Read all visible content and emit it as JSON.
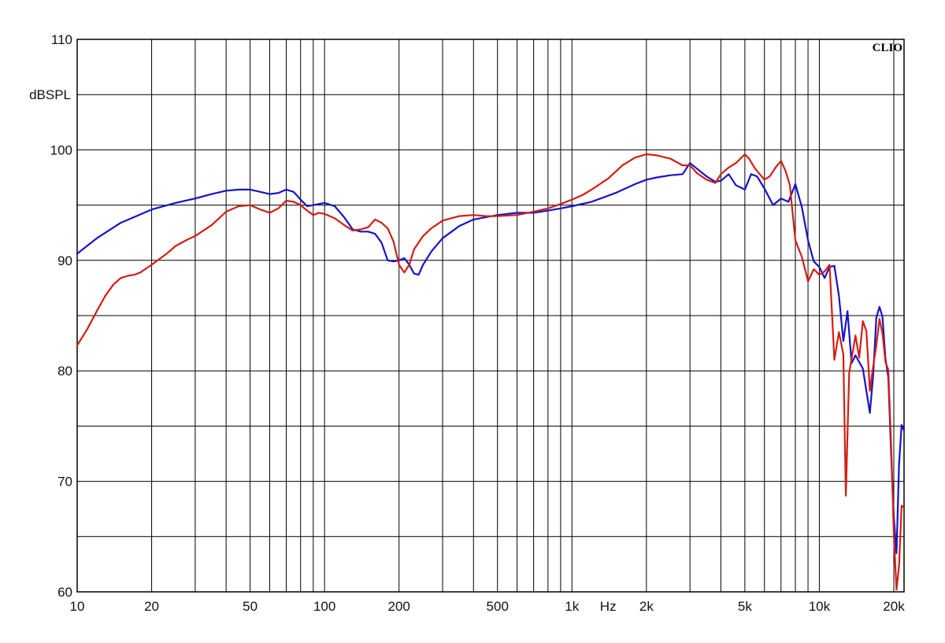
{
  "chart_data": {
    "type": "line",
    "title": "",
    "xlabel": "Hz",
    "ylabel": "dBSPL",
    "brand": "CLIO",
    "x_scale": "log",
    "xlim": [
      10,
      22000
    ],
    "ylim": [
      60,
      110
    ],
    "grid": true,
    "x_ticks": [
      {
        "value": 10,
        "label": "10"
      },
      {
        "value": 20,
        "label": "20"
      },
      {
        "value": 50,
        "label": "50"
      },
      {
        "value": 100,
        "label": "100"
      },
      {
        "value": 200,
        "label": "200"
      },
      {
        "value": 500,
        "label": "500"
      },
      {
        "value": 1000,
        "label": "1k"
      },
      {
        "value": 2000,
        "label": "2k"
      },
      {
        "value": 5000,
        "label": "5k"
      },
      {
        "value": 10000,
        "label": "10k"
      },
      {
        "value": 20000,
        "label": "20k"
      }
    ],
    "y_ticks": [
      {
        "value": 60,
        "label": "60"
      },
      {
        "value": 70,
        "label": "70"
      },
      {
        "value": 80,
        "label": "80"
      },
      {
        "value": 90,
        "label": "90"
      },
      {
        "value": 100,
        "label": "100"
      },
      {
        "value": 110,
        "label": "110"
      }
    ],
    "series": [
      {
        "color": "#1414c8",
        "points": [
          [
            10,
            90.6
          ],
          [
            12,
            92.0
          ],
          [
            15,
            93.4
          ],
          [
            20,
            94.6
          ],
          [
            25,
            95.2
          ],
          [
            30,
            95.6
          ],
          [
            35,
            96.0
          ],
          [
            40,
            96.3
          ],
          [
            45,
            96.4
          ],
          [
            50,
            96.4
          ],
          [
            55,
            96.2
          ],
          [
            60,
            96.0
          ],
          [
            65,
            96.1
          ],
          [
            70,
            96.4
          ],
          [
            75,
            96.2
          ],
          [
            80,
            95.5
          ],
          [
            85,
            94.9
          ],
          [
            90,
            95.0
          ],
          [
            100,
            95.2
          ],
          [
            110,
            94.9
          ],
          [
            120,
            93.9
          ],
          [
            130,
            92.8
          ],
          [
            140,
            92.6
          ],
          [
            150,
            92.6
          ],
          [
            160,
            92.4
          ],
          [
            170,
            91.6
          ],
          [
            180,
            90.0
          ],
          [
            190,
            89.9
          ],
          [
            200,
            90.0
          ],
          [
            210,
            90.2
          ],
          [
            220,
            89.6
          ],
          [
            230,
            88.8
          ],
          [
            240,
            88.7
          ],
          [
            250,
            89.6
          ],
          [
            270,
            90.8
          ],
          [
            300,
            92.0
          ],
          [
            350,
            93.1
          ],
          [
            400,
            93.7
          ],
          [
            500,
            94.1
          ],
          [
            600,
            94.3
          ],
          [
            700,
            94.3
          ],
          [
            800,
            94.5
          ],
          [
            900,
            94.7
          ],
          [
            1000,
            94.9
          ],
          [
            1200,
            95.3
          ],
          [
            1500,
            96.1
          ],
          [
            1800,
            96.9
          ],
          [
            2000,
            97.3
          ],
          [
            2200,
            97.5
          ],
          [
            2500,
            97.7
          ],
          [
            2800,
            97.8
          ],
          [
            3000,
            98.8
          ],
          [
            3200,
            98.3
          ],
          [
            3500,
            97.6
          ],
          [
            3800,
            97.1
          ],
          [
            4000,
            97.2
          ],
          [
            4300,
            97.8
          ],
          [
            4600,
            96.8
          ],
          [
            5000,
            96.4
          ],
          [
            5300,
            97.8
          ],
          [
            5600,
            97.6
          ],
          [
            6000,
            96.5
          ],
          [
            6500,
            95.0
          ],
          [
            7000,
            95.6
          ],
          [
            7500,
            95.3
          ],
          [
            8000,
            96.9
          ],
          [
            8500,
            94.8
          ],
          [
            9000,
            91.8
          ],
          [
            9500,
            89.9
          ],
          [
            10000,
            89.4
          ],
          [
            10500,
            88.4
          ],
          [
            11000,
            89.4
          ],
          [
            11500,
            89.5
          ],
          [
            12000,
            86.8
          ],
          [
            12500,
            82.7
          ],
          [
            13000,
            85.4
          ],
          [
            13500,
            80.7
          ],
          [
            14000,
            81.4
          ],
          [
            15000,
            80.2
          ],
          [
            16000,
            76.2
          ],
          [
            16500,
            79.6
          ],
          [
            17000,
            84.8
          ],
          [
            17500,
            85.8
          ],
          [
            18000,
            84.9
          ],
          [
            18500,
            81.1
          ],
          [
            19000,
            79.4
          ],
          [
            19500,
            72.6
          ],
          [
            20000,
            66.8
          ],
          [
            20500,
            63.5
          ],
          [
            21000,
            71.6
          ],
          [
            21500,
            75.1
          ],
          [
            22000,
            74.6
          ]
        ]
      },
      {
        "color": "#d21e14",
        "points": [
          [
            10,
            82.3
          ],
          [
            11,
            83.8
          ],
          [
            12,
            85.4
          ],
          [
            13,
            86.8
          ],
          [
            14,
            87.8
          ],
          [
            15,
            88.4
          ],
          [
            16,
            88.6
          ],
          [
            17,
            88.7
          ],
          [
            18,
            88.9
          ],
          [
            20,
            89.6
          ],
          [
            23,
            90.6
          ],
          [
            25,
            91.3
          ],
          [
            28,
            91.9
          ],
          [
            30,
            92.2
          ],
          [
            35,
            93.2
          ],
          [
            40,
            94.4
          ],
          [
            45,
            94.9
          ],
          [
            50,
            95.0
          ],
          [
            55,
            94.6
          ],
          [
            60,
            94.3
          ],
          [
            65,
            94.7
          ],
          [
            70,
            95.4
          ],
          [
            75,
            95.3
          ],
          [
            80,
            95.0
          ],
          [
            85,
            94.5
          ],
          [
            90,
            94.1
          ],
          [
            95,
            94.3
          ],
          [
            100,
            94.2
          ],
          [
            110,
            93.8
          ],
          [
            120,
            93.2
          ],
          [
            130,
            92.7
          ],
          [
            140,
            92.8
          ],
          [
            150,
            93.0
          ],
          [
            160,
            93.7
          ],
          [
            170,
            93.4
          ],
          [
            180,
            92.9
          ],
          [
            190,
            91.7
          ],
          [
            200,
            89.6
          ],
          [
            210,
            88.9
          ],
          [
            220,
            89.6
          ],
          [
            230,
            91.0
          ],
          [
            250,
            92.2
          ],
          [
            270,
            92.9
          ],
          [
            300,
            93.6
          ],
          [
            350,
            94.0
          ],
          [
            400,
            94.1
          ],
          [
            450,
            94.0
          ],
          [
            500,
            94.0
          ],
          [
            600,
            94.1
          ],
          [
            700,
            94.4
          ],
          [
            800,
            94.7
          ],
          [
            900,
            95.1
          ],
          [
            1000,
            95.5
          ],
          [
            1100,
            95.9
          ],
          [
            1200,
            96.4
          ],
          [
            1400,
            97.4
          ],
          [
            1600,
            98.6
          ],
          [
            1800,
            99.3
          ],
          [
            2000,
            99.6
          ],
          [
            2200,
            99.5
          ],
          [
            2500,
            99.2
          ],
          [
            2800,
            98.6
          ],
          [
            3000,
            98.6
          ],
          [
            3200,
            97.9
          ],
          [
            3500,
            97.3
          ],
          [
            3800,
            97.0
          ],
          [
            4000,
            97.8
          ],
          [
            4300,
            98.4
          ],
          [
            4600,
            98.8
          ],
          [
            5000,
            99.6
          ],
          [
            5200,
            99.2
          ],
          [
            5500,
            98.3
          ],
          [
            6000,
            97.3
          ],
          [
            6300,
            97.6
          ],
          [
            6700,
            98.5
          ],
          [
            7000,
            99.0
          ],
          [
            7300,
            98.1
          ],
          [
            7600,
            96.8
          ],
          [
            8000,
            91.8
          ],
          [
            8500,
            90.3
          ],
          [
            9000,
            88.1
          ],
          [
            9500,
            89.2
          ],
          [
            10000,
            88.7
          ],
          [
            10500,
            89.0
          ],
          [
            11000,
            89.6
          ],
          [
            11500,
            81.0
          ],
          [
            12000,
            83.5
          ],
          [
            12500,
            81.5
          ],
          [
            12800,
            68.7
          ],
          [
            13200,
            79.8
          ],
          [
            14000,
            83.2
          ],
          [
            14500,
            81.2
          ],
          [
            15000,
            84.5
          ],
          [
            15500,
            83.6
          ],
          [
            16000,
            78.2
          ],
          [
            16500,
            80.4
          ],
          [
            17000,
            82.3
          ],
          [
            17500,
            84.7
          ],
          [
            18000,
            83.4
          ],
          [
            18500,
            80.8
          ],
          [
            19000,
            80.1
          ],
          [
            19500,
            73.5
          ],
          [
            20000,
            65.2
          ],
          [
            20500,
            60.2
          ],
          [
            21000,
            62.4
          ],
          [
            21500,
            67.8
          ],
          [
            22000,
            67.6
          ]
        ]
      }
    ]
  }
}
